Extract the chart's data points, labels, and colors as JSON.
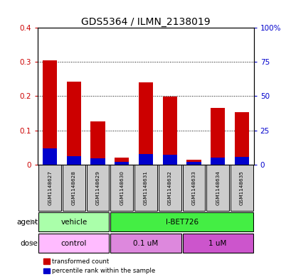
{
  "title": "GDS5364 / ILMN_2138019",
  "samples": [
    "GSM1148627",
    "GSM1148628",
    "GSM1148629",
    "GSM1148630",
    "GSM1148631",
    "GSM1148632",
    "GSM1148633",
    "GSM1148634",
    "GSM1148635"
  ],
  "red_values": [
    0.305,
    0.243,
    0.127,
    0.02,
    0.24,
    0.198,
    0.013,
    0.165,
    0.153
  ],
  "blue_values": [
    0.046,
    0.025,
    0.018,
    0.008,
    0.03,
    0.028,
    0.007,
    0.02,
    0.022
  ],
  "ylim_left": [
    0,
    0.4
  ],
  "ylim_right": [
    0,
    100
  ],
  "yticks_left": [
    0,
    0.1,
    0.2,
    0.3,
    0.4
  ],
  "yticks_right": [
    0,
    25,
    50,
    75,
    100
  ],
  "ytick_labels_left": [
    "0",
    "0.1",
    "0.2",
    "0.3",
    "0.4"
  ],
  "ytick_labels_right": [
    "0",
    "25",
    "50",
    "75",
    "100%"
  ],
  "bar_width": 0.6,
  "red_color": "#cc0000",
  "blue_color": "#0000cc",
  "agent_vehicle_color": "#aaffaa",
  "agent_ibet_color": "#44ee44",
  "dose_control_color": "#ffbbff",
  "dose_01_color": "#dd88dd",
  "dose_1_color": "#cc55cc",
  "agent_vehicle_label": "vehicle",
  "agent_ibet_label": "I-BET726",
  "dose_control_label": "control",
  "dose_01_label": "0.1 uM",
  "dose_1_label": "1 uM",
  "agent_label": "agent",
  "dose_label": "dose",
  "legend_red": "transformed count",
  "legend_blue": "percentile rank within the sample",
  "title_fontsize": 10,
  "axis_label_color_left": "#cc0000",
  "axis_label_color_right": "#0000cc",
  "sample_box_color": "#cccccc",
  "plot_bg": "white"
}
